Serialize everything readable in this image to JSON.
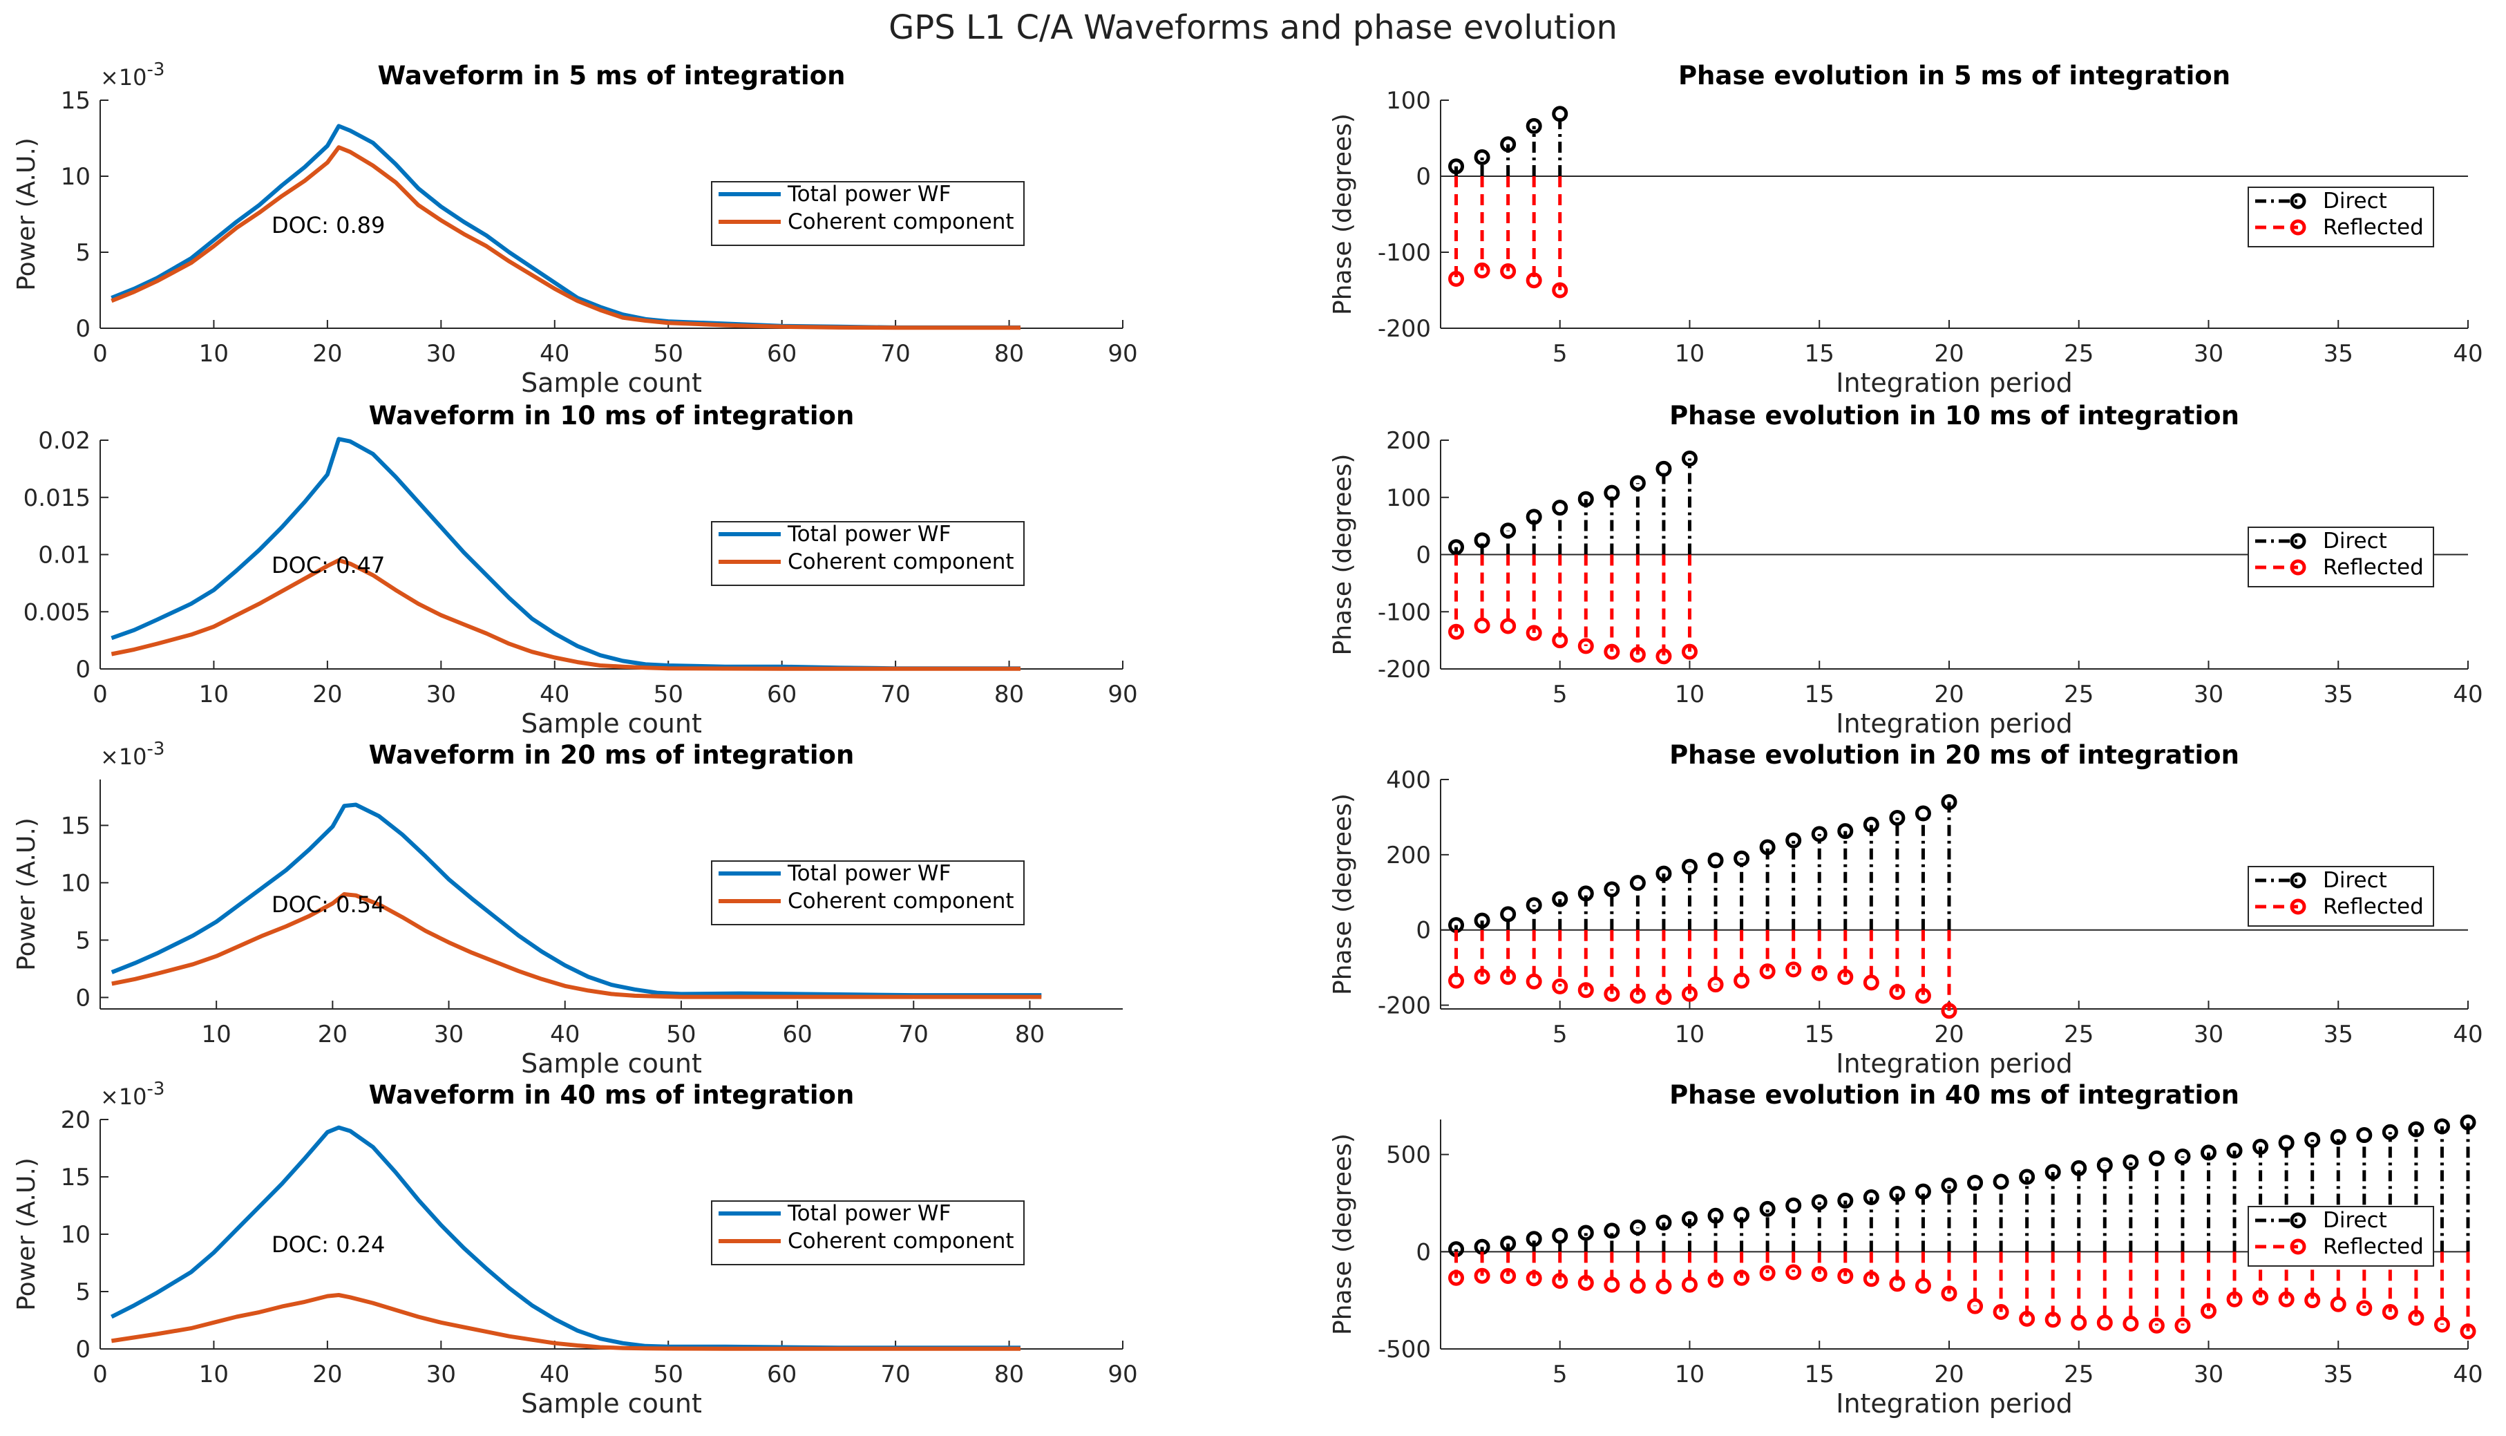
{
  "figure_title": "GPS L1 C/A Waveforms and phase evolution",
  "colors": {
    "total": "#0072BD",
    "coherent": "#D95319",
    "direct": "#000000",
    "reflected": "#FF0000",
    "axis": "#262626"
  },
  "chart_data": [
    {
      "type": "line",
      "title": "Waveform in 5 ms of integration",
      "xlabel": "Sample count",
      "ylabel": "Power (A.U.)",
      "xlim": [
        0,
        90
      ],
      "ylim": [
        0,
        15
      ],
      "xticks": [
        "0",
        "10",
        "20",
        "30",
        "40",
        "50",
        "60",
        "70",
        "80",
        "90"
      ],
      "yticks": [
        "0",
        "5",
        "10",
        "15"
      ],
      "y_exponent": "×10",
      "y_exponent_power": "-3",
      "annotation": "DOC: 0.89",
      "legend": [
        "Total power WF",
        "Coherent component"
      ],
      "x": [
        1,
        3,
        5,
        8,
        10,
        12,
        14,
        16,
        18,
        20,
        21,
        22,
        24,
        26,
        28,
        30,
        32,
        34,
        36,
        38,
        40,
        42,
        44,
        46,
        48,
        50,
        55,
        60,
        65,
        70,
        75,
        81
      ],
      "series": [
        {
          "name": "Total power WF",
          "values": [
            2.0,
            2.6,
            3.3,
            4.6,
            5.8,
            7.0,
            8.1,
            9.4,
            10.6,
            12.0,
            13.3,
            13.0,
            12.2,
            10.8,
            9.2,
            8.0,
            7.0,
            6.1,
            5.0,
            4.0,
            3.0,
            2.0,
            1.4,
            0.9,
            0.6,
            0.45,
            0.3,
            0.15,
            0.1,
            0.05,
            0.05,
            0.05
          ]
        },
        {
          "name": "Coherent component",
          "values": [
            1.8,
            2.4,
            3.1,
            4.3,
            5.4,
            6.6,
            7.6,
            8.7,
            9.7,
            10.9,
            11.9,
            11.6,
            10.7,
            9.6,
            8.1,
            7.1,
            6.2,
            5.4,
            4.4,
            3.5,
            2.6,
            1.8,
            1.2,
            0.7,
            0.5,
            0.35,
            0.2,
            0.1,
            0.05,
            0.03,
            0.03,
            0.03
          ]
        }
      ]
    },
    {
      "type": "line",
      "title": "Waveform in 10 ms of integration",
      "xlabel": "Sample count",
      "ylabel": "",
      "xlim": [
        0,
        90
      ],
      "ylim": [
        0,
        0.02
      ],
      "xticks": [
        "0",
        "10",
        "20",
        "30",
        "40",
        "50",
        "60",
        "70",
        "80",
        "90"
      ],
      "yticks": [
        "0",
        "0.005",
        "0.01",
        "0.015",
        "0.02"
      ],
      "annotation": "DOC: 0.47",
      "legend": [
        "Total power WF",
        "Coherent component"
      ],
      "x": [
        1,
        3,
        5,
        8,
        10,
        12,
        14,
        16,
        18,
        20,
        21,
        22,
        24,
        26,
        28,
        30,
        32,
        34,
        36,
        38,
        40,
        42,
        44,
        46,
        48,
        50,
        55,
        60,
        65,
        70,
        75,
        81
      ],
      "series": [
        {
          "name": "Total power WF",
          "values": [
            0.0027,
            0.0034,
            0.0043,
            0.0057,
            0.0069,
            0.0086,
            0.0104,
            0.0124,
            0.0146,
            0.017,
            0.0201,
            0.0199,
            0.0188,
            0.0168,
            0.0146,
            0.0124,
            0.0102,
            0.0082,
            0.0062,
            0.0044,
            0.0031,
            0.002,
            0.0012,
            0.0007,
            0.0004,
            0.0003,
            0.0002,
            0.0002,
            0.0001,
            5e-05,
            5e-05,
            5e-05
          ]
        },
        {
          "name": "Coherent component",
          "values": [
            0.0013,
            0.0017,
            0.0022,
            0.003,
            0.0037,
            0.0047,
            0.0057,
            0.0068,
            0.0079,
            0.009,
            0.0095,
            0.0092,
            0.0082,
            0.0069,
            0.0057,
            0.0047,
            0.0039,
            0.0031,
            0.0022,
            0.0015,
            0.001,
            0.0006,
            0.0003,
            0.0002,
            0.0001,
            5e-05,
            3e-05,
            2e-05,
            2e-05,
            2e-05,
            2e-05,
            2e-05
          ]
        }
      ]
    },
    {
      "type": "line",
      "title": "Waveform in 20 ms of integration",
      "xlabel": "Sample count",
      "ylabel": "Power (A.U.)",
      "xlim": [
        0,
        88
      ],
      "ylim": [
        -1,
        19
      ],
      "xticks": [
        "10",
        "20",
        "30",
        "40",
        "50",
        "60",
        "70",
        "80"
      ],
      "xtick_values": [
        10,
        20,
        30,
        40,
        50,
        60,
        70,
        80
      ],
      "yticks": [
        "0",
        "5",
        "10",
        "15"
      ],
      "ytick_values": [
        0,
        5,
        10,
        15
      ],
      "y_exponent": "×10",
      "y_exponent_power": "-3",
      "annotation": "DOC: 0.54",
      "legend": [
        "Total power WF",
        "Coherent component"
      ],
      "x": [
        1,
        3,
        5,
        8,
        10,
        12,
        14,
        16,
        18,
        20,
        21,
        22,
        24,
        26,
        28,
        30,
        32,
        34,
        36,
        38,
        40,
        42,
        44,
        46,
        48,
        50,
        55,
        60,
        65,
        70,
        75,
        81
      ],
      "series": [
        {
          "name": "Total power WF",
          "values": [
            2.2,
            3.0,
            3.9,
            5.4,
            6.6,
            8.1,
            9.6,
            11.1,
            12.9,
            14.9,
            16.7,
            16.8,
            15.8,
            14.2,
            12.3,
            10.3,
            8.6,
            7.0,
            5.4,
            4.0,
            2.8,
            1.8,
            1.1,
            0.7,
            0.4,
            0.3,
            0.35,
            0.3,
            0.25,
            0.2,
            0.2,
            0.2
          ]
        },
        {
          "name": "Coherent component",
          "values": [
            1.2,
            1.6,
            2.1,
            2.9,
            3.6,
            4.5,
            5.4,
            6.2,
            7.1,
            8.2,
            9.0,
            8.9,
            8.1,
            7.0,
            5.8,
            4.8,
            3.9,
            3.1,
            2.3,
            1.6,
            1.0,
            0.6,
            0.3,
            0.15,
            0.1,
            0.05,
            0.05,
            0.05,
            0.05,
            0.05,
            0.05,
            0.05
          ]
        }
      ]
    },
    {
      "type": "line",
      "title": "Waveform in 40 ms of integration",
      "xlabel": "Sample count",
      "ylabel": "Power (A.U.)",
      "xlim": [
        0,
        90
      ],
      "ylim": [
        0,
        20
      ],
      "xticks": [
        "0",
        "10",
        "20",
        "30",
        "40",
        "50",
        "60",
        "70",
        "80",
        "90"
      ],
      "yticks": [
        "0",
        "5",
        "10",
        "15",
        "20"
      ],
      "y_exponent": "×10",
      "y_exponent_power": "-3",
      "annotation": "DOC: 0.24",
      "legend": [
        "Total power WF",
        "Coherent component"
      ],
      "x": [
        1,
        3,
        5,
        8,
        10,
        12,
        14,
        16,
        18,
        20,
        21,
        22,
        24,
        26,
        28,
        30,
        32,
        34,
        36,
        38,
        40,
        42,
        44,
        46,
        48,
        50,
        55,
        60,
        65,
        70,
        75,
        81
      ],
      "series": [
        {
          "name": "Total power WF",
          "values": [
            2.8,
            3.8,
            4.9,
            6.7,
            8.4,
            10.4,
            12.4,
            14.4,
            16.6,
            18.9,
            19.3,
            19.0,
            17.6,
            15.4,
            13.0,
            10.8,
            8.8,
            7.0,
            5.3,
            3.8,
            2.6,
            1.6,
            0.9,
            0.5,
            0.25,
            0.2,
            0.2,
            0.15,
            0.1,
            0.1,
            0.1,
            0.1
          ]
        },
        {
          "name": "Coherent component",
          "values": [
            0.7,
            1.0,
            1.3,
            1.8,
            2.3,
            2.8,
            3.2,
            3.7,
            4.1,
            4.6,
            4.7,
            4.5,
            4.0,
            3.4,
            2.8,
            2.3,
            1.9,
            1.5,
            1.1,
            0.8,
            0.5,
            0.3,
            0.15,
            0.08,
            0.05,
            0.03,
            0.02,
            0.02,
            0.02,
            0.02,
            0.02,
            0.02
          ]
        }
      ]
    },
    {
      "type": "stem",
      "title": "Phase evolution in 5 ms of integration",
      "xlabel": "Integration period",
      "ylabel": "Phase (degrees)",
      "xlim": [
        0.4,
        40
      ],
      "ylim": [
        -200,
        100
      ],
      "xticks": [
        "5",
        "10",
        "15",
        "20",
        "25",
        "30",
        "35",
        "40"
      ],
      "xtick_values": [
        5,
        10,
        15,
        20,
        25,
        30,
        35,
        40
      ],
      "yticks": [
        "-200",
        "-100",
        "0",
        "100"
      ],
      "ytick_values": [
        -200,
        -100,
        0,
        100
      ],
      "legend": [
        "Direct",
        "Reflected"
      ],
      "series": [
        {
          "name": "Direct",
          "values": [
            13,
            25,
            42,
            66,
            82
          ]
        },
        {
          "name": "Reflected",
          "values": [
            -135,
            -124,
            -125,
            -137,
            -150
          ]
        }
      ]
    },
    {
      "type": "stem",
      "title": "Phase evolution in 10 ms of integration",
      "xlabel": "Integration period",
      "ylabel": "Phase (degrees)",
      "xlim": [
        0.4,
        40
      ],
      "ylim": [
        -200,
        200
      ],
      "xticks": [
        "5",
        "10",
        "15",
        "20",
        "25",
        "30",
        "35",
        "40"
      ],
      "xtick_values": [
        5,
        10,
        15,
        20,
        25,
        30,
        35,
        40
      ],
      "yticks": [
        "-200",
        "-100",
        "0",
        "100",
        "200"
      ],
      "ytick_values": [
        -200,
        -100,
        0,
        100,
        200
      ],
      "legend": [
        "Direct",
        "Reflected"
      ],
      "series": [
        {
          "name": "Direct",
          "values": [
            13,
            25,
            42,
            66,
            82,
            97,
            108,
            125,
            150,
            168
          ]
        },
        {
          "name": "Reflected",
          "values": [
            -135,
            -124,
            -125,
            -137,
            -150,
            -160,
            -170,
            -175,
            -178,
            -170
          ]
        }
      ]
    },
    {
      "type": "stem",
      "title": "Phase evolution in 20 ms of integration",
      "xlabel": "Integration period",
      "ylabel": "Phase (degrees)",
      "xlim": [
        0.4,
        40
      ],
      "ylim": [
        -210,
        400
      ],
      "xticks": [
        "5",
        "10",
        "15",
        "20",
        "25",
        "30",
        "35",
        "40"
      ],
      "xtick_values": [
        5,
        10,
        15,
        20,
        25,
        30,
        35,
        40
      ],
      "yticks": [
        "-200",
        "0",
        "200",
        "400"
      ],
      "ytick_values": [
        -200,
        0,
        200,
        400
      ],
      "legend": [
        "Direct",
        "Reflected"
      ],
      "series": [
        {
          "name": "Direct",
          "values": [
            13,
            25,
            42,
            66,
            82,
            97,
            108,
            125,
            150,
            168,
            185,
            190,
            220,
            238,
            255,
            263,
            280,
            298,
            310,
            340
          ]
        },
        {
          "name": "Reflected",
          "values": [
            -135,
            -124,
            -125,
            -137,
            -150,
            -160,
            -170,
            -175,
            -178,
            -170,
            -145,
            -135,
            -110,
            -105,
            -115,
            -125,
            -140,
            -165,
            -175,
            -215
          ]
        }
      ]
    },
    {
      "type": "stem",
      "title": "Phase evolution in 40 ms of integration",
      "xlabel": "Integration period",
      "ylabel": "Phase (degrees)",
      "xlim": [
        0.4,
        40
      ],
      "ylim": [
        -500,
        680
      ],
      "xticks": [
        "5",
        "10",
        "15",
        "20",
        "25",
        "30",
        "35",
        "40"
      ],
      "xtick_values": [
        5,
        10,
        15,
        20,
        25,
        30,
        35,
        40
      ],
      "yticks": [
        "-500",
        "0",
        "500"
      ],
      "ytick_values": [
        -500,
        0,
        500
      ],
      "legend": [
        "Direct",
        "Reflected"
      ],
      "series": [
        {
          "name": "Direct",
          "values": [
            13,
            25,
            42,
            66,
            82,
            97,
            108,
            125,
            150,
            168,
            185,
            190,
            220,
            238,
            255,
            263,
            280,
            298,
            310,
            340,
            355,
            360,
            385,
            410,
            430,
            445,
            460,
            480,
            490,
            510,
            520,
            540,
            560,
            575,
            590,
            600,
            615,
            630,
            645,
            665
          ]
        },
        {
          "name": "Reflected",
          "values": [
            -135,
            -124,
            -125,
            -137,
            -150,
            -160,
            -170,
            -175,
            -178,
            -170,
            -145,
            -135,
            -110,
            -105,
            -115,
            -125,
            -140,
            -165,
            -175,
            -215,
            -280,
            -310,
            -345,
            -350,
            -365,
            -365,
            -370,
            -380,
            -380,
            -305,
            -245,
            -235,
            -245,
            -250,
            -270,
            -290,
            -310,
            -340,
            -375,
            -410
          ]
        }
      ]
    }
  ]
}
